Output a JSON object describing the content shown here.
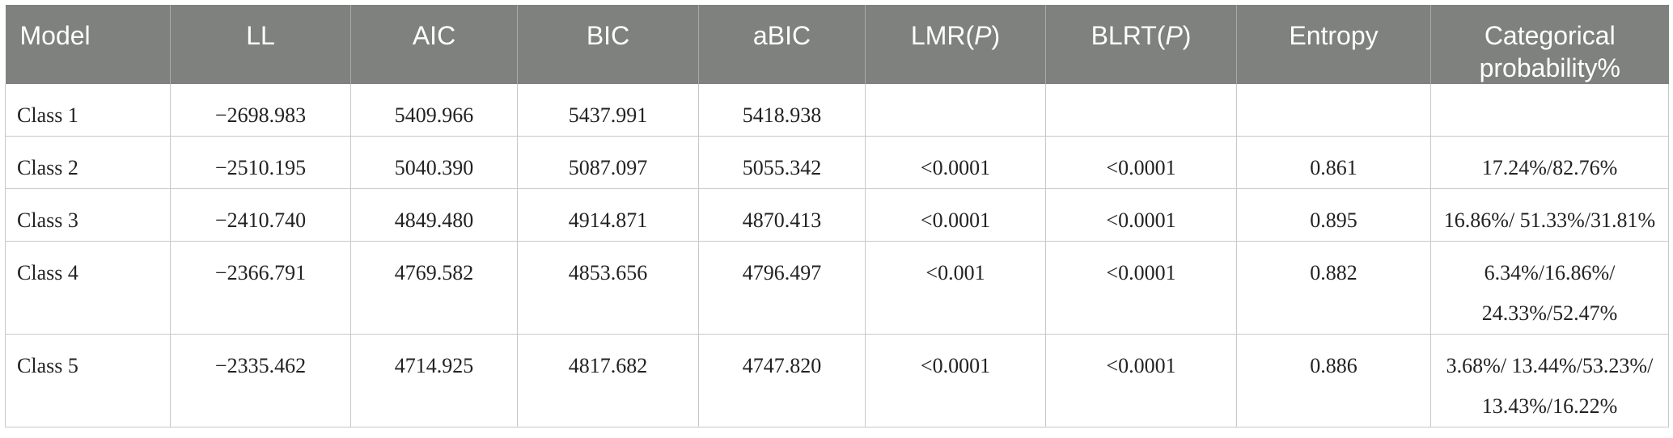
{
  "table": {
    "headers": {
      "model": "Model",
      "ll": "LL",
      "aic": "AIC",
      "bic": "BIC",
      "abic": "aBIC",
      "lmr_prefix": "LMR(",
      "lmr_p": "P",
      "lmr_suffix": ")",
      "blrt_prefix": "BLRT(",
      "blrt_p": "P",
      "blrt_suffix": ")",
      "entropy": "Entropy",
      "cat_line1": "Categorical",
      "cat_line2": "probability%"
    },
    "rows": [
      {
        "model": "Class 1",
        "ll": "−2698.983",
        "aic": "5409.966",
        "bic": "5437.991",
        "abic": "5418.938",
        "lmr": "",
        "blrt": "",
        "entropy": "",
        "cat1": "",
        "cat2": ""
      },
      {
        "model": "Class 2",
        "ll": "−2510.195",
        "aic": "5040.390",
        "bic": "5087.097",
        "abic": "5055.342",
        "lmr": "<0.0001",
        "blrt": "<0.0001",
        "entropy": "0.861",
        "cat1": "17.24%/82.76%",
        "cat2": ""
      },
      {
        "model": "Class 3",
        "ll": "−2410.740",
        "aic": "4849.480",
        "bic": "4914.871",
        "abic": "4870.413",
        "lmr": "<0.0001",
        "blrt": "<0.0001",
        "entropy": "0.895",
        "cat1": "16.86%/ 51.33%/31.81%",
        "cat2": ""
      },
      {
        "model": "Class 4",
        "ll": "−2366.791",
        "aic": "4769.582",
        "bic": "4853.656",
        "abic": "4796.497",
        "lmr": "<0.001",
        "blrt": "<0.0001",
        "entropy": "0.882",
        "cat1": "6.34%/16.86%/",
        "cat2": "24.33%/52.47%"
      },
      {
        "model": "Class 5",
        "ll": "−2335.462",
        "aic": "4714.925",
        "bic": "4817.682",
        "abic": "4747.820",
        "lmr": "<0.0001",
        "blrt": "<0.0001",
        "entropy": "0.886",
        "cat1": "3.68%/ 13.44%/53.23%/",
        "cat2": "13.43%/16.22%"
      }
    ]
  }
}
